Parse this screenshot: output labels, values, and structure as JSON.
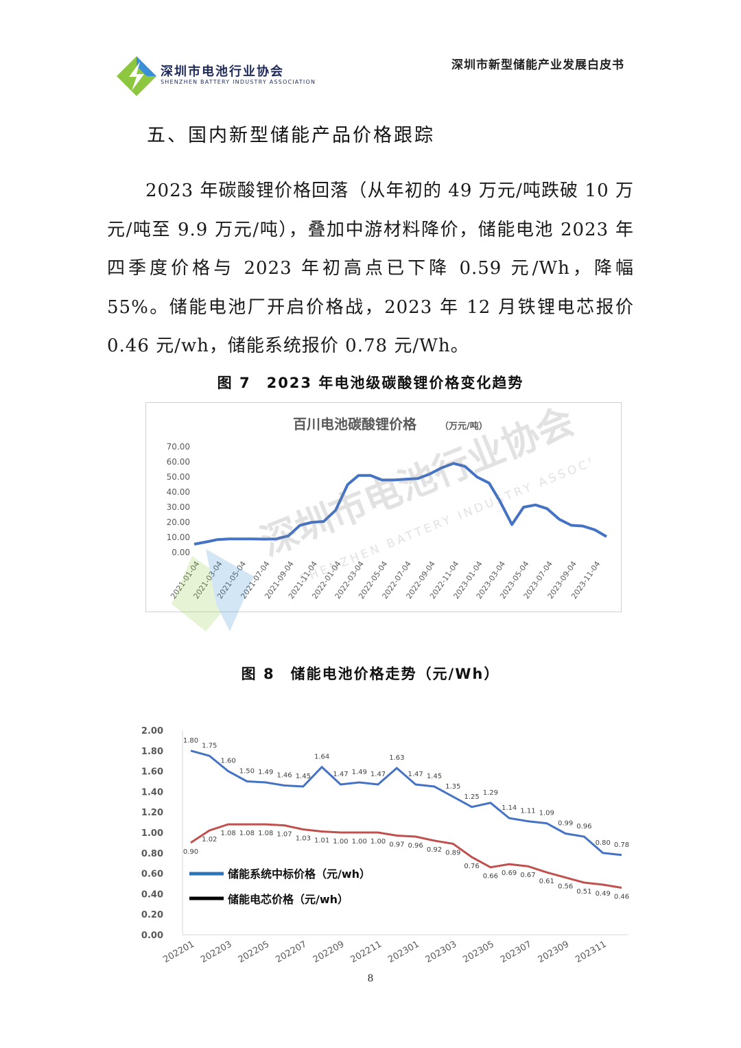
{
  "header": {
    "org_name_cn": "深圳市电池行业协会",
    "org_name_en": "SHENZHEN BATTERY INDUSTRY ASSOCIATION",
    "doc_title": "深圳市新型储能产业发展白皮书"
  },
  "section_heading": "五、国内新型储能产品价格跟踪",
  "body_paragraph": "2023 年碳酸锂价格回落（从年初的 49 万元/吨跌破 10 万元/吨至 9.9 万元/吨），叠加中游材料降价，储能电池 2023 年四季度价格与 2023 年初高点已下降 0.59 元/Wh，降幅 55%。储能电池厂开启价格战，2023 年 12 月铁锂电芯报价 0.46 元/wh，储能系统报价 0.78 元/Wh。",
  "figure7": {
    "caption": "图 7　2023 年电池级碳酸锂价格变化趋势"
  },
  "figure8": {
    "caption": "图 8　储能电池价格走势（元/Wh）"
  },
  "watermark": {
    "cn": "深圳市电池行业协会",
    "en": "SHENZHEN BATTERY INDUSTRY ASSOCIATION"
  },
  "page_number": "8",
  "colors": {
    "series_blue": "#4472c4",
    "series_blue2": "#2e75b6",
    "series_red": "#c0504d",
    "logo_green": "#8dc63f",
    "logo_blue": "#3a8fd6"
  },
  "chart_data": [
    {
      "type": "line",
      "title": "百川电池碳酸锂价格",
      "subtitle": "（万元/吨）",
      "xlabel": "",
      "ylabel": "",
      "ylim": [
        0,
        70
      ],
      "yticks": [
        "0.00",
        "10.00",
        "20.00",
        "30.00",
        "40.00",
        "50.00",
        "60.00",
        "70.00"
      ],
      "x_tick_labels": [
        "2021-01-04",
        "2021-03-04",
        "2021-05-04",
        "2021-07-04",
        "2021-09-04",
        "2021-11-04",
        "2022-01-04",
        "2022-03-04",
        "2022-05-04",
        "2022-07-04",
        "2022-09-04",
        "2022-11-04",
        "2023-01-04",
        "2023-03-04",
        "2023-05-04",
        "2023-07-04",
        "2023-09-04",
        "2023-11-04"
      ],
      "grid": false,
      "series": [
        {
          "x": [
            "2021-01-04",
            "2021-02-04",
            "2021-03-04",
            "2021-04-04",
            "2021-05-04",
            "2021-06-04",
            "2021-07-04",
            "2021-08-04",
            "2021-09-04",
            "2021-10-04",
            "2021-11-04",
            "2021-12-04",
            "2022-01-04",
            "2022-02-04",
            "2022-03-04",
            "2022-04-04",
            "2022-05-04",
            "2022-06-04",
            "2022-07-04",
            "2022-08-04",
            "2022-09-04",
            "2022-10-04",
            "2022-11-04",
            "2022-12-04",
            "2023-01-04",
            "2023-02-04",
            "2023-03-04",
            "2023-04-04",
            "2023-05-04",
            "2023-06-04",
            "2023-07-04",
            "2023-08-04",
            "2023-09-04",
            "2023-10-04",
            "2023-11-04",
            "2023-12-04"
          ],
          "values": [
            5.5,
            7,
            8.5,
            9,
            9,
            9,
            8.8,
            9,
            11,
            18,
            20,
            20.5,
            28,
            45,
            51,
            51,
            48,
            48,
            48.5,
            49,
            52,
            56,
            59,
            57,
            50,
            46,
            34,
            18.5,
            30,
            31.5,
            29,
            22,
            18,
            17.5,
            15,
            10.5
          ]
        }
      ]
    },
    {
      "type": "line",
      "title": "",
      "xlabel": "",
      "ylabel": "",
      "ylim": [
        0,
        2.0
      ],
      "yticks": [
        "0.00",
        "0.20",
        "0.40",
        "0.60",
        "0.80",
        "1.00",
        "1.20",
        "1.40",
        "1.60",
        "1.80",
        "2.00"
      ],
      "categories": [
        "202201",
        "202202",
        "202203",
        "202204",
        "202205",
        "202206",
        "202207",
        "202208",
        "202209",
        "202210",
        "202211",
        "202212",
        "202301",
        "202302",
        "202303",
        "202304",
        "202305",
        "202306",
        "202307",
        "202308",
        "202309",
        "202310",
        "202311",
        "202312"
      ],
      "x_tick_labels": [
        "202201",
        "202203",
        "202205",
        "202207",
        "202209",
        "202211",
        "202301",
        "202303",
        "202305",
        "202307",
        "202309",
        "202311"
      ],
      "legend_position": "left",
      "grid": false,
      "series": [
        {
          "name": "储能系统中标价格（元/wh）",
          "values": [
            1.8,
            1.75,
            1.6,
            1.5,
            1.49,
            1.46,
            1.45,
            1.64,
            1.47,
            1.49,
            1.47,
            1.63,
            1.47,
            1.45,
            1.35,
            1.25,
            1.29,
            1.14,
            1.11,
            1.09,
            0.99,
            0.96,
            0.8,
            0.78
          ],
          "labels": [
            "1.80",
            "1.75",
            "1.60",
            "1.50",
            "1.49",
            "1.46",
            "1.45",
            "1.64",
            "1.47",
            "1.49",
            "1.47",
            "1.63",
            "1.47",
            "1.45",
            "1.35",
            "1.25",
            "1.29",
            "1.14",
            "1.11",
            "1.09",
            "0.99",
            "0.96",
            "0.80",
            "0.78"
          ]
        },
        {
          "name": "储能电芯价格（元/wh）",
          "values": [
            0.9,
            1.02,
            1.08,
            1.08,
            1.08,
            1.07,
            1.03,
            1.01,
            1.0,
            1.0,
            1.0,
            0.97,
            0.96,
            0.92,
            0.89,
            0.76,
            0.66,
            0.69,
            0.67,
            0.61,
            0.56,
            0.51,
            0.49,
            0.46
          ],
          "labels": [
            "0.90",
            "1.02",
            "1.08",
            "1.08",
            "1.08",
            "1.07",
            "1.03",
            "1.01",
            "1.00",
            "1.00",
            "1.00",
            "0.97",
            "0.96",
            "0.92",
            "0.89",
            "0.76",
            "0.66",
            "0.69",
            "0.67",
            "0.61",
            "0.56",
            "0.51",
            "0.49",
            "0.46"
          ]
        }
      ]
    }
  ]
}
